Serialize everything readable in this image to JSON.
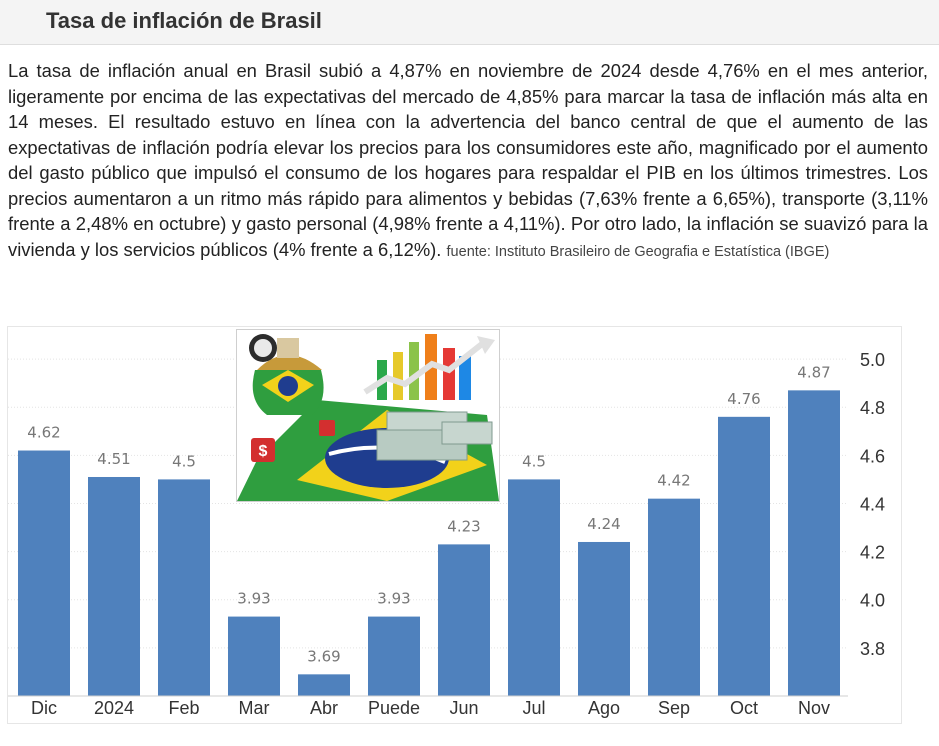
{
  "header": {
    "title": "Tasa de inflación de Brasil"
  },
  "description": {
    "text": "La tasa de inflación anual en Brasil subió a 4,87% en noviembre de 2024 desde 4,76% en el mes anterior, ligeramente por encima de las expectativas del mercado de 4,85% para marcar la tasa de inflación más alta en 14 meses. El resultado estuvo en línea con la advertencia del banco central de que el aumento de las expectativas de inflación podría elevar los precios para los consumidores este año, magnificado por el aumento del gasto público que impulsó el consumo de los hogares para respaldar el PIB en los últimos trimestres. Los precios aumentaron a un ritmo más rápido para alimentos y bebidas (7,63% frente a 6,65%), transporte (3,11% frente a 2,48% en octubre) y gasto personal (4,98% frente a 4,11%). Por otro lado, la inflación se suavizó para la vivienda y los servicios públicos (4% frente a 6,12%).",
    "source": "fuente: Instituto Brasileiro de Geografia e Estatística (IBGE)"
  },
  "colors": {
    "bar": "#4f81bd",
    "label": "#777777",
    "axis_text": "#333333",
    "grid": "#e4e4e4"
  },
  "chart_data": {
    "type": "bar",
    "categories": [
      "Dic",
      "2024",
      "Feb",
      "Mar",
      "Abr",
      "Puede",
      "Jun",
      "Jul",
      "Ago",
      "Sep",
      "Oct",
      "Nov"
    ],
    "values": [
      4.62,
      4.51,
      4.5,
      3.93,
      3.69,
      3.93,
      4.23,
      4.5,
      4.24,
      4.42,
      4.76,
      4.87
    ],
    "value_labels": [
      "4.62",
      "4.51",
      "4.5",
      "3.93",
      "3.69",
      "3.93",
      "4.23",
      "4.5",
      "4.24",
      "4.42",
      "4.76",
      "4.87"
    ],
    "yticks": [
      "3.8",
      "4.0",
      "4.2",
      "4.4",
      "4.6",
      "4.8",
      "5.0"
    ],
    "ylim": [
      3.6,
      5.1
    ],
    "y_axis_side": "right",
    "grid": true,
    "title": "",
    "xlabel": "",
    "ylabel": ""
  }
}
